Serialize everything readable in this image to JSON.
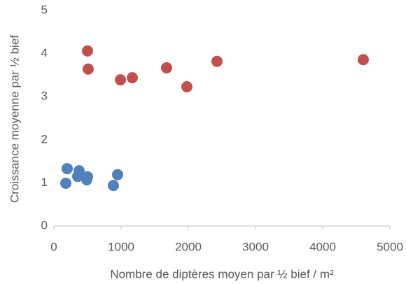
{
  "chart_data": {
    "type": "scatter",
    "xlabel": "Nombre de diptères moyen par ½ bief / m²",
    "ylabel": "Croissance moyenne par ½ bief",
    "series": [
      {
        "color": "#c0504d",
        "x": [
          500,
          510,
          990,
          1167,
          1677,
          1979,
          2427,
          4604
        ],
        "values": [
          4.06,
          3.64,
          3.39,
          3.44,
          3.67,
          3.23,
          3.82,
          3.86
        ]
      },
      {
        "color": "#4f81bd",
        "x": [
          198,
          177,
          375,
          354,
          500,
          490,
          885,
          948
        ],
        "values": [
          1.33,
          0.99,
          1.28,
          1.15,
          1.14,
          1.07,
          0.94,
          1.19
        ]
      }
    ],
    "xlim": [
      0,
      5000
    ],
    "xticks": [
      0,
      1000,
      2000,
      3000,
      4000,
      5000
    ],
    "ylim": [
      0,
      5
    ],
    "yticks": [
      0,
      1,
      2,
      3,
      4,
      5
    ],
    "grid": false
  }
}
